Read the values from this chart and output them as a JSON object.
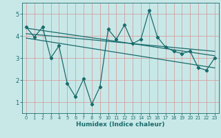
{
  "xlabel": "Humidex (Indice chaleur)",
  "background_color": "#c8e8e8",
  "grid_color": "#d4a0a0",
  "line_color": "#1a6b6b",
  "xlim": [
    -0.5,
    23.5
  ],
  "ylim": [
    0.5,
    5.5
  ],
  "xticks": [
    0,
    1,
    2,
    3,
    4,
    5,
    6,
    7,
    8,
    9,
    10,
    11,
    12,
    13,
    14,
    15,
    16,
    17,
    18,
    19,
    20,
    21,
    22,
    23
  ],
  "yticks": [
    1,
    2,
    3,
    4,
    5
  ],
  "main_x": [
    0,
    1,
    2,
    3,
    4,
    5,
    6,
    7,
    8,
    9,
    10,
    11,
    12,
    13,
    14,
    15,
    16,
    17,
    18,
    19,
    20,
    21,
    22,
    23
  ],
  "main_y": [
    4.4,
    3.95,
    4.4,
    3.0,
    3.55,
    1.85,
    1.25,
    2.05,
    0.9,
    1.7,
    4.3,
    3.85,
    4.5,
    3.65,
    3.85,
    5.15,
    3.95,
    3.5,
    3.3,
    3.2,
    3.3,
    2.55,
    2.45,
    3.0
  ],
  "trend1_x": [
    0,
    23
  ],
  "trend1_y": [
    4.35,
    3.1
  ],
  "trend2_x": [
    0,
    23
  ],
  "trend2_y": [
    3.9,
    2.55
  ],
  "trend3_x": [
    0,
    23
  ],
  "trend3_y": [
    4.1,
    3.3
  ]
}
